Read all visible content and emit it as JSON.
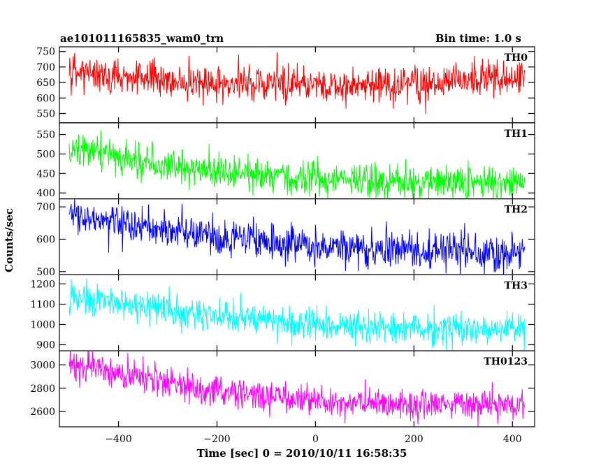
{
  "chart_data": {
    "type": "line",
    "title_left": "ae101011165835_wam0_trn",
    "title_right": "Bin time: 1.0 s",
    "xlabel": "Time [sec] 0 = 2010/10/11 16:58:35",
    "ylabel": "Counts/sec",
    "xlim": [
      -520,
      445
    ],
    "x_range": [
      -500,
      425
    ],
    "x_ticks": [
      -400,
      -200,
      0,
      200,
      400
    ],
    "x_tick_labels": [
      "−400",
      "−200",
      "0",
      "200",
      "400"
    ],
    "grid": false,
    "series": [
      {
        "name": "TH0",
        "color": "#ff0000",
        "ylim": [
          520,
          765
        ],
        "y_ticks": [
          550,
          600,
          650,
          700,
          750
        ],
        "y_tick_labels": [
          "550",
          "600",
          "650",
          "700",
          "750"
        ],
        "trend": [
          [
            -500,
            690
          ],
          [
            -400,
            670
          ],
          [
            -200,
            648
          ],
          [
            0,
            640
          ],
          [
            200,
            645
          ],
          [
            425,
            660
          ]
        ],
        "noise_sd": 28,
        "y_clip": [
          520,
          765
        ]
      },
      {
        "name": "TH1",
        "color": "#00ff00",
        "ylim": [
          385,
          580
        ],
        "y_ticks": [
          400,
          450,
          500,
          550
        ],
        "y_tick_labels": [
          "400",
          "450",
          "500",
          "550"
        ],
        "trend": [
          [
            -500,
            505
          ],
          [
            -430,
            495
          ],
          [
            -300,
            470
          ],
          [
            -100,
            445
          ],
          [
            100,
            430
          ],
          [
            425,
            425
          ]
        ],
        "noise_sd": 22,
        "y_clip": [
          385,
          580
        ]
      },
      {
        "name": "TH2",
        "color": "#0000ff",
        "ylim": [
          490,
          725
        ],
        "y_ticks": [
          500,
          600,
          700
        ],
        "y_tick_labels": [
          "500",
          "600",
          "700"
        ],
        "trend": [
          [
            -500,
            670
          ],
          [
            -400,
            650
          ],
          [
            -200,
            605
          ],
          [
            0,
            580
          ],
          [
            200,
            565
          ],
          [
            425,
            555
          ]
        ],
        "noise_sd": 28,
        "y_clip": [
          490,
          725
        ]
      },
      {
        "name": "TH3",
        "color": "#00ffff",
        "ylim": [
          870,
          1245
        ],
        "y_ticks": [
          900,
          1000,
          1100,
          1200
        ],
        "y_tick_labels": [
          "900",
          "1000",
          "1100",
          "1200"
        ],
        "trend": [
          [
            -500,
            1150
          ],
          [
            -400,
            1110
          ],
          [
            -200,
            1040
          ],
          [
            0,
            1000
          ],
          [
            200,
            980
          ],
          [
            425,
            975
          ]
        ],
        "noise_sd": 40,
        "y_clip": [
          870,
          1245
        ]
      },
      {
        "name": "TH0123",
        "color": "#ff00ff",
        "ylim": [
          2470,
          3120
        ],
        "y_ticks": [
          2600,
          2800,
          3000
        ],
        "y_tick_labels": [
          "2600",
          "2800",
          "3000"
        ],
        "trend": [
          [
            -500,
            3000
          ],
          [
            -430,
            2960
          ],
          [
            -300,
            2840
          ],
          [
            -150,
            2750
          ],
          [
            50,
            2680
          ],
          [
            200,
            2660
          ],
          [
            425,
            2650
          ]
        ],
        "noise_sd": 65,
        "y_clip": [
          2470,
          3120
        ]
      }
    ]
  }
}
